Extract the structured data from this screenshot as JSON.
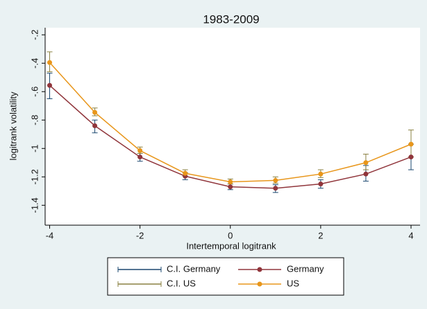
{
  "chart_data": {
    "type": "line",
    "title": "1983-2009",
    "x_label": "Intertemporal logitrank",
    "y_label": "logitrank volatility",
    "x": [
      -4,
      -3,
      -2,
      -1,
      0,
      1,
      2,
      3,
      4
    ],
    "xlim": [
      -4.1,
      4.2
    ],
    "xticks": [
      -4,
      -2,
      0,
      2,
      4
    ],
    "ylim": [
      -1.54,
      -0.15
    ],
    "yticks": [
      {
        "value": -0.2,
        "label": "-.2"
      },
      {
        "value": -0.4,
        "label": "-.4"
      },
      {
        "value": -0.6,
        "label": "-.6"
      },
      {
        "value": -0.8,
        "label": "-.8"
      },
      -1,
      -1.2,
      -1.4
    ],
    "grid": false,
    "series": [
      {
        "name": "C.I. Germany",
        "color": "#1a476f",
        "lower": [
          -0.65,
          -0.89,
          -1.09,
          -1.22,
          -1.29,
          -1.31,
          -1.28,
          -1.23,
          -1.15
        ],
        "upper": [
          -0.47,
          -0.8,
          -1.035,
          -1.17,
          -1.25,
          -1.255,
          -1.22,
          -1.12,
          -0.97
        ]
      },
      {
        "name": "Germany",
        "color": "#90353b",
        "values": [
          -0.556,
          -0.84,
          -1.06,
          -1.195,
          -1.27,
          -1.28,
          -1.25,
          -1.18,
          -1.06
        ]
      },
      {
        "name": "C.I. US",
        "color": "#8a8040",
        "lower": [
          -0.46,
          -0.77,
          -1.035,
          -1.195,
          -1.25,
          -1.245,
          -1.205,
          -1.15,
          -1.06
        ],
        "upper": [
          -0.32,
          -0.715,
          -0.99,
          -1.15,
          -1.215,
          -1.2,
          -1.15,
          -1.04,
          -0.87
        ]
      },
      {
        "name": "US",
        "color": "#e8961b",
        "values": [
          -0.395,
          -0.746,
          -1.015,
          -1.175,
          -1.235,
          -1.225,
          -1.18,
          -1.1,
          -0.97
        ]
      }
    ]
  }
}
